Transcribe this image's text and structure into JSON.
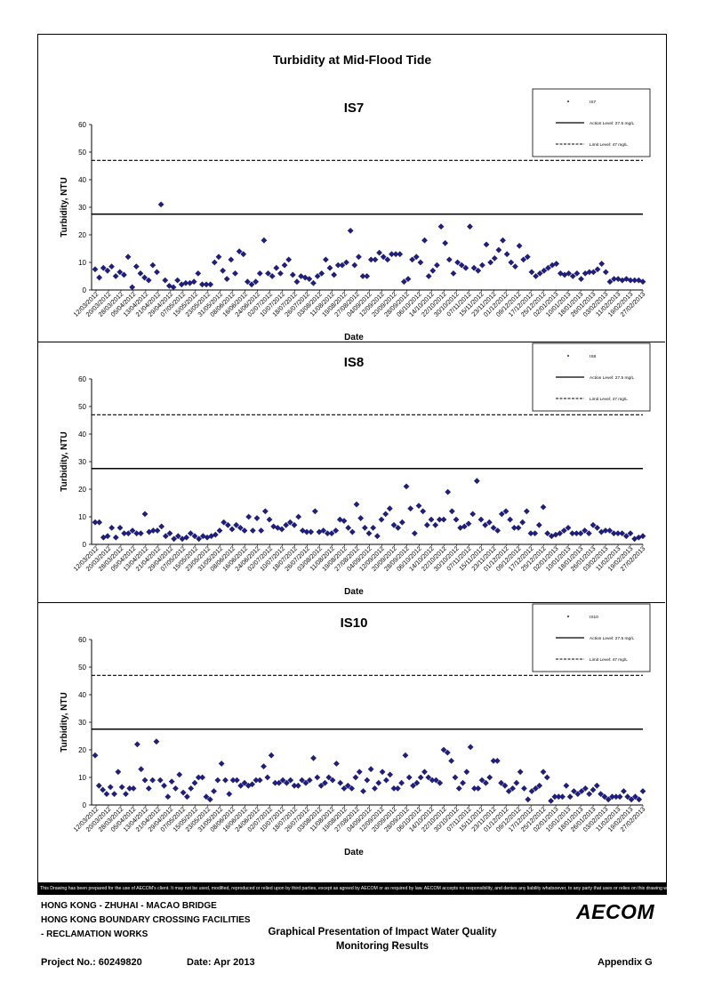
{
  "page_title": "Turbidity at Mid-Flood Tide",
  "disclaimer": "This Drawing has been prepared for the use of AECOM's client. It may not be used, modified, reproduced or relied upon by third parties, except as agreed by AECOM or as required by law. AECOM accepts no responsibility, and denies any liability whatsoever, to any party that uses or relies on this drawing without AECOM's express written consent.",
  "footer": {
    "project_line1": "HONG KONG - ZHUHAI - MACAO BRIDGE",
    "project_line2": "HONG KONG BOUNDARY CROSSING FACILITIES",
    "project_line3": "- RECLAMATION WORKS",
    "center_title1": "Graphical Presentation of Impact Water Quality",
    "center_title2": "Monitoring Results",
    "project_no": "Project No.: 60249820",
    "date": "Date: Apr 2013",
    "appendix": "Appendix G",
    "logo": "AECOM"
  },
  "chart_data": [
    {
      "type": "scatter",
      "title": "IS7",
      "xlabel": "Date",
      "ylabel": "Turbidity, NTU",
      "ylim": [
        0,
        60
      ],
      "yticks": [
        0,
        10,
        20,
        30,
        40,
        50,
        60
      ],
      "x_tick_labels": [
        "12/03/2012",
        "20/03/2012",
        "28/03/2012",
        "05/04/2012",
        "13/04/2012",
        "21/04/2012",
        "29/04/2012",
        "07/05/2012",
        "15/05/2012",
        "23/05/2012",
        "31/05/2012",
        "08/06/2012",
        "16/06/2012",
        "24/06/2012",
        "02/07/2012",
        "10/07/2012",
        "18/07/2012",
        "26/07/2012",
        "03/08/2012",
        "11/08/2012",
        "19/08/2012",
        "27/08/2012",
        "04/09/2012",
        "12/09/2012",
        "20/09/2012",
        "28/09/2012",
        "06/10/2012",
        "14/10/2012",
        "22/10/2012",
        "30/10/2012",
        "07/11/2012",
        "15/11/2012",
        "23/11/2012",
        "01/12/2012",
        "09/12/2012",
        "17/12/2012",
        "25/12/2012",
        "02/01/2013",
        "10/01/2013",
        "18/01/2013",
        "26/01/2013",
        "03/02/2013",
        "11/02/2013",
        "19/02/2013",
        "27/02/2013"
      ],
      "legend": [
        "IS7",
        "Action Level: 27.5 mg/L",
        "Limit Level: 47 mg/L"
      ],
      "legend_position": "top-right",
      "action_level": 27.5,
      "limit_level": 47,
      "series": [
        {
          "name": "IS7",
          "values": [
            7.5,
            4.5,
            8,
            7,
            8.5,
            5,
            6.5,
            5.5,
            12,
            1,
            8.5,
            6,
            4.5,
            3.5,
            9,
            6.5,
            31,
            3.5,
            1.5,
            1,
            3.5,
            2,
            2.5,
            2.5,
            3,
            6,
            2,
            2,
            2,
            10,
            12,
            7,
            4,
            11,
            6,
            14,
            13,
            3,
            2,
            3,
            6,
            18,
            6,
            5,
            8,
            6,
            9,
            11,
            5.5,
            3,
            5,
            4.5,
            4,
            2.5,
            5,
            6,
            11,
            8,
            5.5,
            9,
            9,
            10,
            21.5,
            9,
            12,
            5,
            5,
            11,
            11,
            13.5,
            12,
            11,
            13,
            13,
            13,
            3,
            4,
            11,
            12,
            10,
            18,
            5,
            7,
            9,
            23,
            17,
            11,
            6,
            10,
            9,
            8,
            23,
            8,
            7,
            9,
            16.5,
            10,
            11.5,
            14.5,
            18,
            13,
            10,
            8.5,
            16,
            11,
            12,
            6.5,
            5,
            6,
            7,
            8,
            9,
            9.5,
            6,
            5.5,
            6,
            5,
            6,
            4,
            6,
            6.5,
            6.5,
            7.5,
            9.5,
            6.5,
            3,
            4,
            4,
            3.5,
            4,
            3.5,
            3.5,
            3.5,
            3
          ]
        }
      ]
    },
    {
      "type": "scatter",
      "title": "IS8",
      "xlabel": "Date",
      "ylabel": "Turbidity, NTU",
      "ylim": [
        0,
        60
      ],
      "yticks": [
        0,
        10,
        20,
        30,
        40,
        50,
        60
      ],
      "x_tick_labels": [
        "12/03/2012",
        "20/03/2012",
        "28/03/2012",
        "05/04/2012",
        "13/04/2012",
        "21/04/2012",
        "29/04/2012",
        "07/05/2012",
        "15/05/2012",
        "23/05/2012",
        "31/05/2012",
        "08/06/2012",
        "16/06/2012",
        "24/06/2012",
        "02/07/2012",
        "10/07/2012",
        "18/07/2012",
        "26/07/2012",
        "03/08/2012",
        "11/08/2012",
        "19/08/2012",
        "27/08/2012",
        "04/09/2012",
        "12/09/2012",
        "20/09/2012",
        "28/09/2012",
        "06/10/2012",
        "14/10/2012",
        "22/10/2012",
        "30/10/2012",
        "07/11/2012",
        "15/11/2012",
        "23/11/2012",
        "01/12/2012",
        "09/12/2012",
        "17/12/2012",
        "25/12/2012",
        "02/01/2013",
        "10/01/2013",
        "18/01/2013",
        "26/01/2013",
        "03/02/2013",
        "11/02/2013",
        "19/02/2013",
        "27/02/2013"
      ],
      "legend": [
        "IS8",
        "Action Level: 27.5 mg/L",
        "Limit Level: 47 mg/L"
      ],
      "legend_position": "top-right",
      "action_level": 27.5,
      "limit_level": 47,
      "series": [
        {
          "name": "IS8",
          "values": [
            8,
            8,
            2.5,
            3,
            6,
            2.5,
            6,
            4,
            4,
            5,
            4,
            4,
            11,
            4.5,
            5,
            5,
            6.5,
            3,
            4,
            2,
            3,
            2,
            2.5,
            4,
            3,
            2,
            3,
            2.5,
            3,
            3.5,
            5,
            8,
            7,
            5.5,
            7,
            6,
            5,
            10,
            5,
            9.5,
            5,
            12,
            9,
            6.5,
            6,
            5.5,
            7,
            8,
            7,
            10,
            5,
            4.5,
            4.5,
            12,
            4.5,
            5,
            4,
            4,
            5,
            9,
            8.5,
            6,
            4.5,
            14.5,
            9.5,
            6,
            4,
            6,
            3,
            9,
            11,
            13,
            7,
            6,
            8,
            21,
            13,
            4,
            14,
            12,
            7,
            9,
            7,
            9,
            9,
            19,
            12,
            9,
            6,
            6.5,
            7.5,
            11,
            23,
            9,
            7,
            8,
            6,
            5,
            11,
            12,
            9,
            6,
            6,
            8,
            12,
            4,
            4,
            7,
            13.5,
            4,
            3,
            3.5,
            4,
            5,
            6,
            4,
            4,
            4,
            5,
            4,
            7,
            6,
            4.5,
            5,
            5,
            4,
            4,
            4,
            3,
            4,
            2,
            2.5,
            3
          ]
        }
      ]
    },
    {
      "type": "scatter",
      "title": "IS10",
      "xlabel": "Date",
      "ylabel": "Turbidity, NTU",
      "ylim": [
        0,
        60
      ],
      "yticks": [
        0,
        10,
        20,
        30,
        40,
        50,
        60
      ],
      "x_tick_labels": [
        "12/03/2012",
        "20/03/2012",
        "28/03/2012",
        "05/04/2012",
        "13/04/2012",
        "21/04/2012",
        "29/04/2012",
        "07/05/2012",
        "15/05/2012",
        "23/05/2012",
        "31/05/2012",
        "08/06/2012",
        "16/06/2012",
        "24/06/2012",
        "02/07/2012",
        "10/07/2012",
        "18/07/2012",
        "26/07/2012",
        "03/08/2012",
        "11/08/2012",
        "19/08/2012",
        "27/08/2012",
        "04/09/2012",
        "12/09/2012",
        "20/09/2012",
        "28/09/2012",
        "06/10/2012",
        "14/10/2012",
        "22/10/2012",
        "30/10/2012",
        "07/11/2012",
        "15/11/2012",
        "23/11/2012",
        "01/12/2012",
        "09/12/2012",
        "17/12/2012",
        "25/12/2012",
        "02/01/2013",
        "10/01/2013",
        "18/01/2013",
        "26/01/2013",
        "03/02/2013",
        "11/02/2013",
        "19/02/2013",
        "27/02/2013"
      ],
      "legend": [
        "IS10",
        "Action Level: 27.5 mg/L",
        "Limit Level: 47 mg/L"
      ],
      "legend_position": "top-right",
      "action_level": 27.5,
      "limit_level": 47,
      "series": [
        {
          "name": "IS10",
          "values": [
            18,
            7,
            5.5,
            4,
            6.5,
            4,
            12,
            6.5,
            4,
            6,
            6,
            22,
            13,
            9,
            6,
            9,
            23,
            9,
            7,
            3,
            8.5,
            6,
            11,
            4.5,
            3,
            6,
            8,
            10,
            10,
            3,
            2,
            5,
            9,
            15,
            9,
            4,
            9,
            9,
            7,
            8,
            7,
            7.5,
            9,
            9,
            14,
            10,
            18,
            8,
            8,
            9,
            8,
            9,
            7,
            7,
            9,
            8,
            9,
            17,
            10,
            7,
            8,
            10,
            9,
            15,
            8,
            6,
            7,
            6,
            10,
            12,
            5,
            9,
            13,
            6,
            8,
            12,
            9,
            11,
            6,
            6,
            8,
            18,
            10,
            7,
            8,
            10,
            12,
            10,
            9,
            9,
            8,
            20,
            19,
            16,
            10,
            6,
            8,
            12,
            21,
            6,
            6,
            9,
            8,
            10,
            16,
            16,
            8,
            7,
            5,
            6,
            8,
            12,
            6,
            2,
            5,
            6,
            7,
            12,
            10,
            1.5,
            3,
            3,
            3,
            7,
            3,
            5,
            4,
            5,
            6,
            4,
            5.5,
            7,
            4,
            3,
            2,
            3,
            3,
            3,
            5,
            3,
            2,
            3,
            2,
            5
          ]
        }
      ]
    }
  ]
}
